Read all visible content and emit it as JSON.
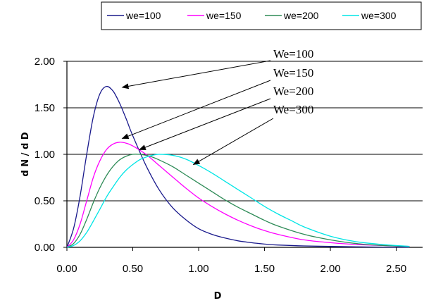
{
  "chart_data": {
    "type": "line",
    "title": "",
    "xlabel": "D",
    "ylabel": "d N / d D",
    "xlim": [
      0,
      2.7
    ],
    "ylim": [
      0,
      2.0
    ],
    "x_ticks": [
      "0.00",
      "0.50",
      "1.00",
      "1.50",
      "2.00",
      "2.50"
    ],
    "y_ticks": [
      "0.00",
      "0.50",
      "1.00",
      "1.50",
      "2.00"
    ],
    "grid": "horizontal",
    "legend_position": "top-right",
    "series": [
      {
        "name": "we=100",
        "color": "#1a1a8c",
        "x": [
          0.0,
          0.05,
          0.1,
          0.15,
          0.2,
          0.25,
          0.3,
          0.35,
          0.4,
          0.45,
          0.5,
          0.6,
          0.7,
          0.8,
          0.9,
          1.0,
          1.1,
          1.2,
          1.3,
          1.4,
          1.5,
          1.6,
          1.8,
          2.0,
          2.2,
          2.4,
          2.6
        ],
        "y": [
          0.0,
          0.2,
          0.55,
          1.0,
          1.4,
          1.65,
          1.73,
          1.68,
          1.55,
          1.38,
          1.2,
          0.88,
          0.62,
          0.43,
          0.3,
          0.2,
          0.14,
          0.1,
          0.07,
          0.05,
          0.035,
          0.025,
          0.015,
          0.01,
          0.005,
          0.003,
          0.002
        ]
      },
      {
        "name": "we=150",
        "color": "#ff00ff",
        "x": [
          0.0,
          0.05,
          0.1,
          0.15,
          0.2,
          0.25,
          0.3,
          0.35,
          0.4,
          0.45,
          0.5,
          0.6,
          0.7,
          0.8,
          0.9,
          1.0,
          1.1,
          1.2,
          1.3,
          1.4,
          1.5,
          1.6,
          1.8,
          2.0,
          2.2,
          2.4,
          2.6
        ],
        "y": [
          0.0,
          0.08,
          0.25,
          0.5,
          0.75,
          0.93,
          1.05,
          1.11,
          1.13,
          1.12,
          1.09,
          1.0,
          0.88,
          0.76,
          0.64,
          0.53,
          0.44,
          0.36,
          0.29,
          0.23,
          0.18,
          0.14,
          0.08,
          0.05,
          0.03,
          0.02,
          0.01
        ]
      },
      {
        "name": "we=200",
        "color": "#2e8b57",
        "x": [
          0.0,
          0.05,
          0.1,
          0.15,
          0.2,
          0.25,
          0.3,
          0.35,
          0.4,
          0.45,
          0.5,
          0.55,
          0.6,
          0.65,
          0.7,
          0.8,
          0.9,
          1.0,
          1.1,
          1.2,
          1.3,
          1.4,
          1.5,
          1.6,
          1.8,
          2.0,
          2.2,
          2.4,
          2.6
        ],
        "y": [
          0.0,
          0.04,
          0.14,
          0.3,
          0.48,
          0.64,
          0.77,
          0.87,
          0.94,
          0.98,
          1.0,
          1.0,
          0.99,
          0.97,
          0.94,
          0.87,
          0.78,
          0.69,
          0.6,
          0.51,
          0.43,
          0.36,
          0.29,
          0.23,
          0.14,
          0.08,
          0.04,
          0.02,
          0.01
        ]
      },
      {
        "name": "we=300",
        "color": "#00e5e5",
        "x": [
          0.0,
          0.05,
          0.1,
          0.15,
          0.2,
          0.25,
          0.3,
          0.35,
          0.4,
          0.45,
          0.5,
          0.55,
          0.6,
          0.65,
          0.7,
          0.8,
          0.9,
          1.0,
          1.1,
          1.2,
          1.3,
          1.4,
          1.5,
          1.6,
          1.7,
          1.8,
          2.0,
          2.2,
          2.4,
          2.6
        ],
        "y": [
          0.0,
          0.02,
          0.07,
          0.16,
          0.28,
          0.41,
          0.54,
          0.65,
          0.75,
          0.83,
          0.89,
          0.94,
          0.97,
          0.99,
          1.0,
          0.99,
          0.95,
          0.88,
          0.8,
          0.71,
          0.62,
          0.53,
          0.44,
          0.36,
          0.29,
          0.22,
          0.12,
          0.06,
          0.03,
          0.01
        ]
      }
    ],
    "annotations": [
      {
        "text": "We=100",
        "point_x": 0.42,
        "point_y": 1.72
      },
      {
        "text": "We=150",
        "point_x": 0.42,
        "point_y": 1.17
      },
      {
        "text": "We=200",
        "point_x": 0.55,
        "point_y": 1.05
      },
      {
        "text": "We=300",
        "point_x": 0.96,
        "point_y": 0.89
      }
    ]
  }
}
